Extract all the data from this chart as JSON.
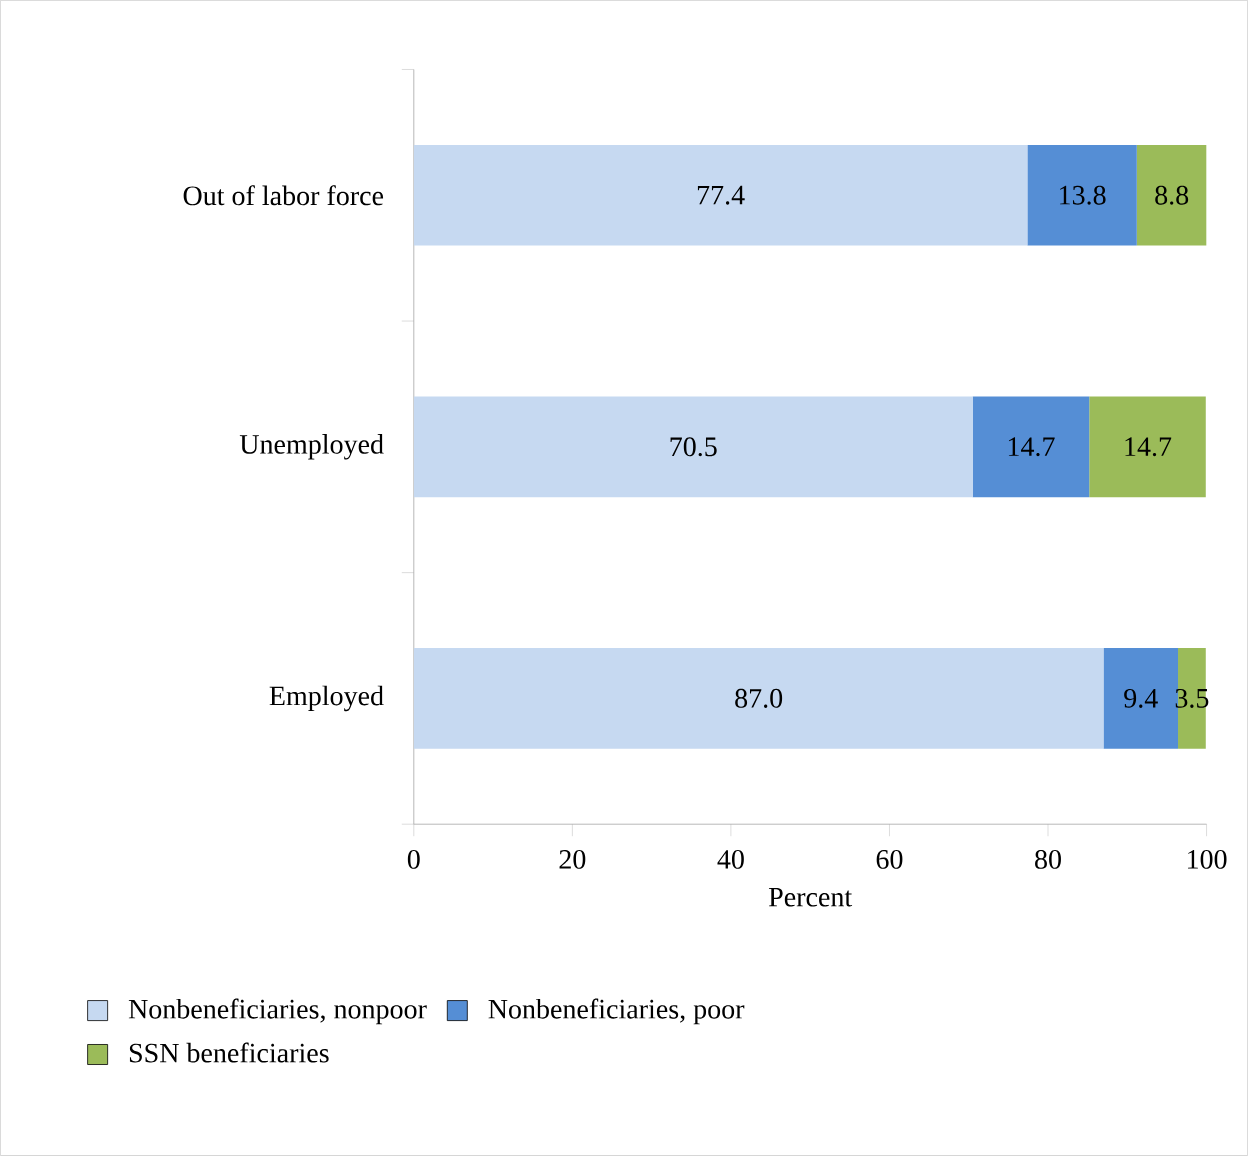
{
  "chart_data": {
    "type": "bar",
    "orientation": "horizontal",
    "stacked": true,
    "xlabel": "Percent",
    "categories": [
      "Out of labor force",
      "Unemployed",
      "Employed"
    ],
    "series": [
      {
        "name": "Nonbeneficiaries, nonpoor",
        "color": "#c6d9f1",
        "values": [
          77.4,
          70.5,
          87.0
        ],
        "value_labels": [
          "77.4",
          "70.5",
          "87.0"
        ]
      },
      {
        "name": "Nonbeneficiaries, poor",
        "color": "#558ed5",
        "values": [
          13.8,
          14.7,
          9.4
        ],
        "value_labels": [
          "13.8",
          "14.7",
          "9.4"
        ]
      },
      {
        "name": "SSN beneficiaries",
        "color": "#9bbb59",
        "values": [
          8.8,
          14.7,
          3.5
        ],
        "value_labels": [
          "8.8",
          "14.7",
          "3.5"
        ]
      }
    ],
    "xlim": [
      0,
      100
    ],
    "xticks": [
      0,
      20,
      40,
      60,
      80,
      100
    ],
    "grid": false,
    "legend": "bottom"
  }
}
